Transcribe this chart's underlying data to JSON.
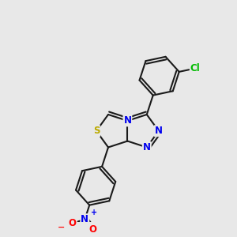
{
  "bg_color": "#e8e8e8",
  "bond_color": "#1a1a1a",
  "bond_width": 1.5,
  "atom_colors": {
    "N": "#0000ee",
    "S": "#bbaa00",
    "Cl": "#00bb00",
    "O": "#ff0000",
    "C": "#1a1a1a"
  },
  "font_size_atom": 8.5,
  "xlim": [
    -1.55,
    1.55
  ],
  "ylim": [
    -1.3,
    1.5
  ]
}
